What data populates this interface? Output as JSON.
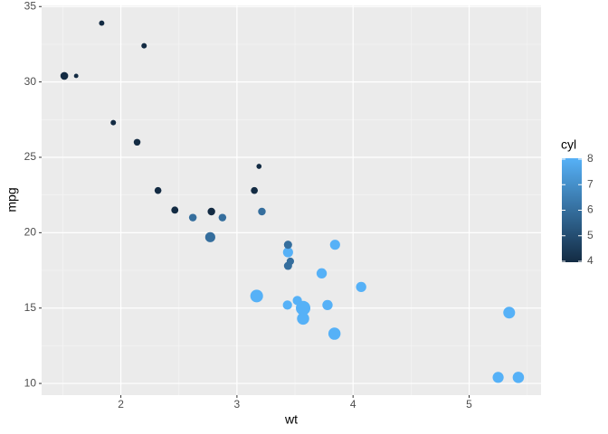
{
  "chart_data": {
    "type": "scatter",
    "x_label": "wt",
    "y_label": "mpg",
    "x": [
      2.62,
      2.875,
      2.32,
      3.215,
      3.44,
      3.46,
      3.57,
      3.19,
      3.15,
      3.44,
      3.44,
      4.07,
      3.73,
      3.78,
      5.25,
      5.424,
      5.345,
      2.2,
      1.615,
      1.835,
      2.465,
      3.52,
      3.435,
      3.84,
      3.845,
      1.935,
      2.14,
      1.513,
      3.17,
      2.77,
      3.57,
      2.78
    ],
    "y": [
      21.0,
      21.0,
      22.8,
      21.4,
      18.7,
      18.1,
      14.3,
      24.4,
      22.8,
      19.2,
      17.8,
      16.4,
      17.3,
      15.2,
      10.4,
      10.4,
      14.7,
      32.4,
      30.4,
      33.9,
      21.5,
      15.5,
      15.2,
      13.3,
      19.2,
      27.3,
      26.0,
      30.4,
      15.8,
      19.7,
      15.0,
      21.4
    ],
    "color_values": [
      6,
      6,
      4,
      6,
      8,
      6,
      8,
      4,
      4,
      6,
      6,
      8,
      8,
      8,
      8,
      8,
      8,
      4,
      4,
      4,
      4,
      8,
      8,
      8,
      8,
      4,
      4,
      4,
      8,
      6,
      8,
      4
    ],
    "sizes": [
      110,
      110,
      93,
      110,
      175,
      105,
      245,
      62,
      95,
      123,
      123,
      180,
      180,
      180,
      205,
      215,
      230,
      66,
      52,
      65,
      97,
      150,
      150,
      245,
      175,
      66,
      91,
      113,
      264,
      175,
      335,
      109
    ],
    "xlim": [
      1.3175,
      5.6195
    ],
    "ylim": [
      9.225,
      35.075
    ],
    "xticks": [
      2,
      3,
      4,
      5
    ],
    "yticks": [
      10,
      15,
      20,
      25,
      30,
      35
    ],
    "minor_xticks": [
      1.5,
      2.5,
      3.5,
      4.5,
      5.5
    ],
    "minor_yticks": [
      12.5,
      17.5,
      22.5,
      27.5,
      32.5
    ],
    "grid": true,
    "colorbar": {
      "title": "cyl",
      "lim": [
        4,
        8
      ],
      "ticks": [
        4,
        5,
        6,
        7,
        8
      ],
      "low_color": "#132B43",
      "high_color": "#56B1F7"
    }
  }
}
